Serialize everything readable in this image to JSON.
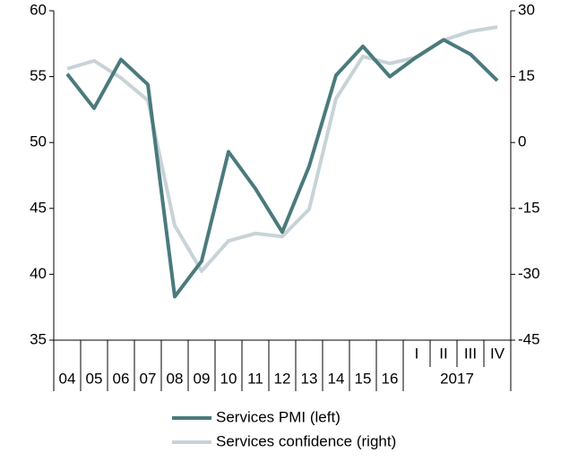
{
  "chart_data": {
    "type": "line",
    "categories": [
      "04",
      "05",
      "06",
      "07",
      "08",
      "09",
      "10",
      "11",
      "12",
      "13",
      "14",
      "15",
      "16",
      "I",
      "II",
      "III",
      "IV"
    ],
    "group_label": "2017",
    "series": [
      {
        "name": "Services PMI (left)",
        "color": "#4a7a7c",
        "axis": "y",
        "values": [
          55.2,
          52.6,
          56.3,
          54.4,
          38.3,
          41.0,
          49.3,
          46.5,
          43.2,
          48.2,
          55.1,
          57.3,
          55.0,
          56.5,
          57.8,
          56.7,
          54.7
        ]
      },
      {
        "name": "Services confidence (right)",
        "color": "#c8d3d8",
        "axis": "y2",
        "values": [
          16.8,
          18.6,
          14.7,
          9.6,
          -18.9,
          -29.3,
          -22.4,
          -20.7,
          -21.4,
          -15.2,
          10.0,
          19.6,
          18.0,
          19.4,
          23.3,
          25.3,
          26.3
        ]
      }
    ],
    "ylim": [
      35,
      60
    ],
    "yticks": [
      35,
      40,
      45,
      50,
      55,
      60
    ],
    "y2lim": [
      -45,
      30
    ],
    "y2ticks": [
      -45,
      -30,
      -15,
      0,
      15,
      30
    ],
    "grid": false,
    "legend": "bottom"
  }
}
